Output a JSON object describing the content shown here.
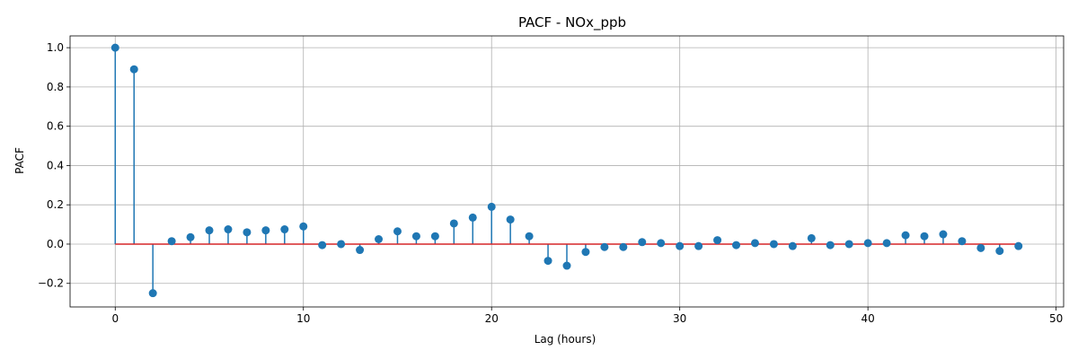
{
  "chart_data": {
    "type": "stem",
    "title": "PACF - NOx_ppb",
    "xlabel": "Lag (hours)",
    "ylabel": "PACF",
    "xlim": [
      -2.4,
      50.4
    ],
    "ylim": [
      -0.32,
      1.06
    ],
    "xticks": [
      "0",
      "10",
      "20",
      "30",
      "40",
      "50"
    ],
    "yticks": [
      "−0.2",
      "0.0",
      "0.2",
      "0.4",
      "0.6",
      "0.8",
      "1.0"
    ],
    "grid": true,
    "baseline": 0,
    "colors": {
      "marker": "#1f77b4",
      "stem": "#1f77b4",
      "baseline": "#d62728",
      "grid": "#b0b0b0"
    },
    "x": [
      0,
      1,
      2,
      3,
      4,
      5,
      6,
      7,
      8,
      9,
      10,
      11,
      12,
      13,
      14,
      15,
      16,
      17,
      18,
      19,
      20,
      21,
      22,
      23,
      24,
      25,
      26,
      27,
      28,
      29,
      30,
      31,
      32,
      33,
      34,
      35,
      36,
      37,
      38,
      39,
      40,
      41,
      42,
      43,
      44,
      45,
      46,
      47,
      48
    ],
    "values": [
      1.0,
      0.89,
      -0.25,
      0.015,
      0.035,
      0.07,
      0.075,
      0.06,
      0.07,
      0.075,
      0.09,
      -0.005,
      0.0,
      -0.03,
      0.025,
      0.065,
      0.04,
      0.04,
      0.105,
      0.135,
      0.19,
      0.125,
      0.04,
      -0.085,
      -0.11,
      -0.04,
      -0.015,
      -0.015,
      0.01,
      0.005,
      -0.01,
      -0.01,
      0.02,
      -0.005,
      0.005,
      0.0,
      -0.01,
      0.03,
      -0.005,
      0.0,
      0.005,
      0.005,
      0.045,
      0.04,
      0.05,
      0.015,
      -0.02,
      -0.035,
      -0.01
    ]
  }
}
